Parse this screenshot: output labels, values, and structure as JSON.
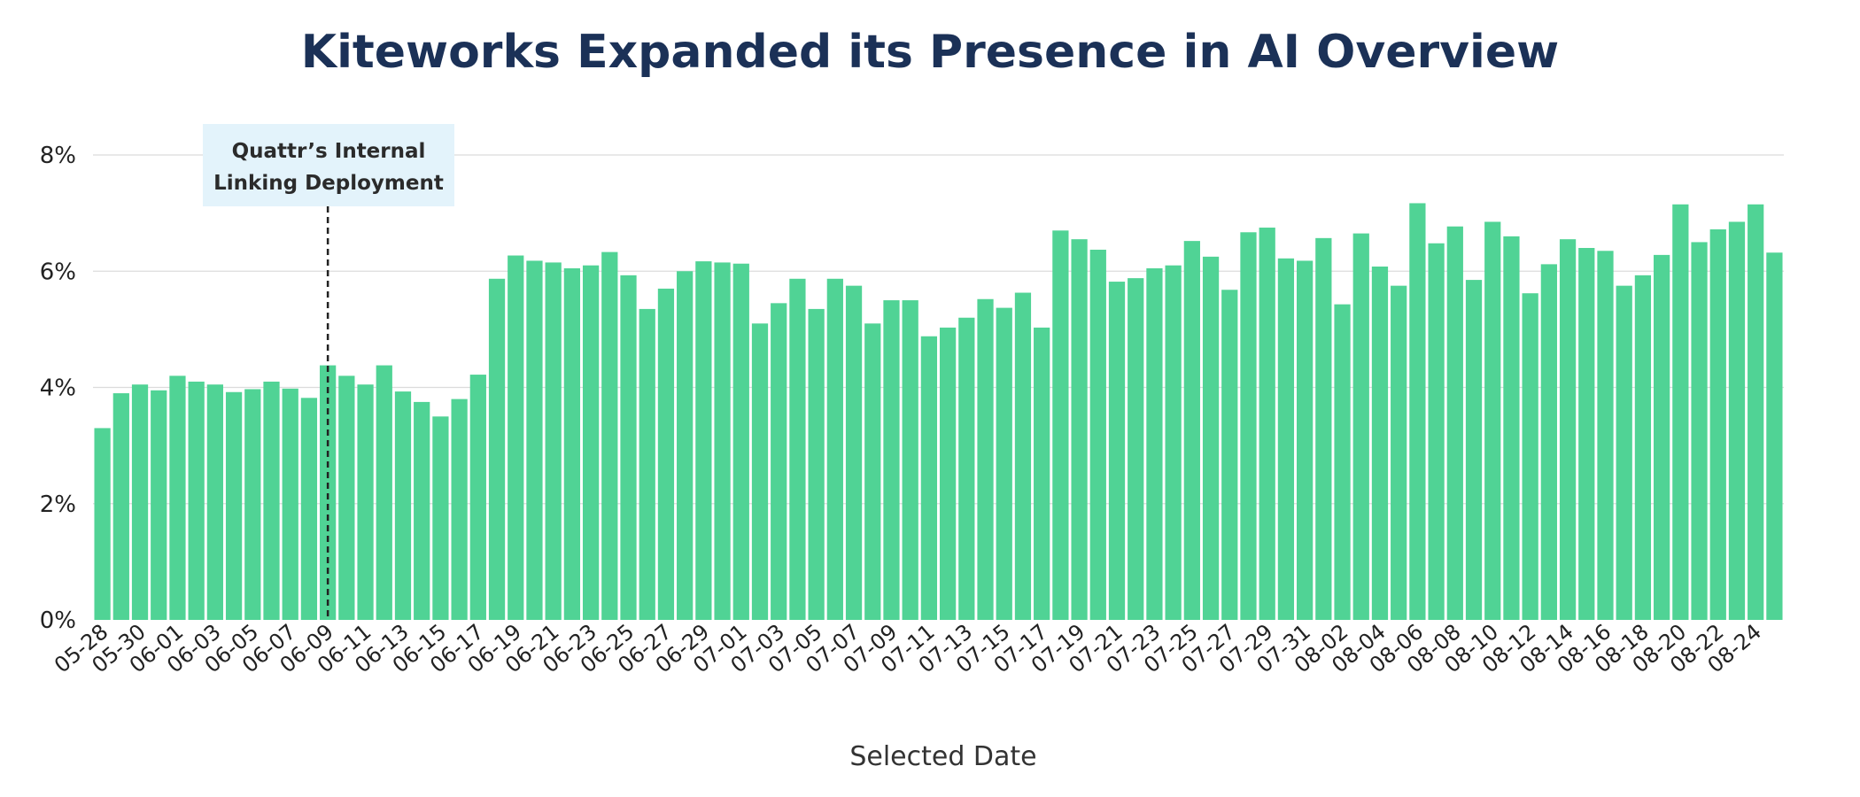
{
  "colors": {
    "bar": "#50d395",
    "title": "#1b3157",
    "grid": "#dcdcdc",
    "annotation_bg": "#e3f3fb",
    "annotation_line": "#222222"
  },
  "chart_data": {
    "type": "bar",
    "title": "Kiteworks Expanded its Presence in AI Overview",
    "xlabel": "Selected Date",
    "ylabel": "",
    "ylim": [
      0,
      8
    ],
    "yticks": [
      "0%",
      "2%",
      "4%",
      "6%",
      "8%"
    ],
    "grid": "horizontal",
    "categories": [
      "05-28",
      "05-29",
      "05-30",
      "05-31",
      "06-01",
      "06-02",
      "06-03",
      "06-04",
      "06-05",
      "06-06",
      "06-07",
      "06-08",
      "06-09",
      "06-10",
      "06-11",
      "06-12",
      "06-13",
      "06-14",
      "06-15",
      "06-16",
      "06-17",
      "06-18",
      "06-19",
      "06-20",
      "06-21",
      "06-22",
      "06-23",
      "06-24",
      "06-25",
      "06-26",
      "06-27",
      "06-28",
      "06-29",
      "06-30",
      "07-01",
      "07-02",
      "07-03",
      "07-04",
      "07-05",
      "07-06",
      "07-07",
      "07-08",
      "07-09",
      "07-10",
      "07-11",
      "07-12",
      "07-13",
      "07-14",
      "07-15",
      "07-16",
      "07-17",
      "07-18",
      "07-19",
      "07-20",
      "07-21",
      "07-22",
      "07-23",
      "07-24",
      "07-25",
      "07-26",
      "07-27",
      "07-28",
      "07-29",
      "07-30",
      "07-31",
      "08-01",
      "08-02",
      "08-03",
      "08-04",
      "08-05",
      "08-06",
      "08-07",
      "08-08",
      "08-09",
      "08-10",
      "08-11",
      "08-12",
      "08-13",
      "08-14",
      "08-15",
      "08-16",
      "08-17",
      "08-18",
      "08-19",
      "08-20",
      "08-21",
      "08-22",
      "08-23",
      "08-24",
      "08-25"
    ],
    "tick_labels": [
      "05-28",
      "05-30",
      "06-01",
      "06-03",
      "06-05",
      "06-07",
      "06-09",
      "06-11",
      "06-13",
      "06-15",
      "06-17",
      "06-19",
      "06-21",
      "06-23",
      "06-25",
      "06-27",
      "06-29",
      "07-01",
      "07-03",
      "07-05",
      "07-07",
      "07-09",
      "07-11",
      "07-13",
      "07-15",
      "07-17",
      "07-19",
      "07-21",
      "07-23",
      "07-25",
      "07-27",
      "07-29",
      "07-31",
      "08-02",
      "08-04",
      "08-06",
      "08-08",
      "08-10",
      "08-12",
      "08-14",
      "08-16",
      "08-18",
      "08-20",
      "08-22",
      "08-24"
    ],
    "values": [
      3.3,
      3.9,
      4.05,
      3.95,
      4.2,
      4.1,
      4.05,
      3.92,
      3.97,
      4.1,
      3.98,
      3.82,
      4.38,
      4.2,
      4.05,
      4.38,
      3.93,
      3.75,
      3.5,
      3.8,
      4.22,
      5.87,
      6.27,
      6.18,
      6.15,
      6.05,
      6.1,
      6.33,
      5.93,
      5.35,
      5.7,
      6.0,
      6.17,
      6.15,
      6.13,
      5.1,
      5.45,
      5.87,
      5.35,
      5.87,
      5.75,
      5.1,
      5.5,
      5.5,
      4.88,
      5.03,
      5.2,
      5.52,
      5.37,
      5.63,
      5.03,
      6.7,
      6.55,
      6.37,
      5.82,
      5.88,
      6.05,
      6.1,
      6.52,
      6.25,
      5.68,
      6.67,
      6.75,
      6.22,
      6.18,
      6.57,
      5.43,
      6.65,
      6.08,
      5.75,
      7.17,
      6.48,
      6.77,
      5.85,
      6.85,
      6.6,
      5.62,
      6.12,
      6.55,
      6.4,
      6.35,
      5.75,
      5.93,
      6.28,
      7.15,
      6.5,
      6.72,
      6.85,
      7.15,
      6.32
    ],
    "annotation": {
      "line1": "Quattr’s Internal",
      "line2": "Linking Deployment",
      "at_category": "06-09"
    }
  }
}
